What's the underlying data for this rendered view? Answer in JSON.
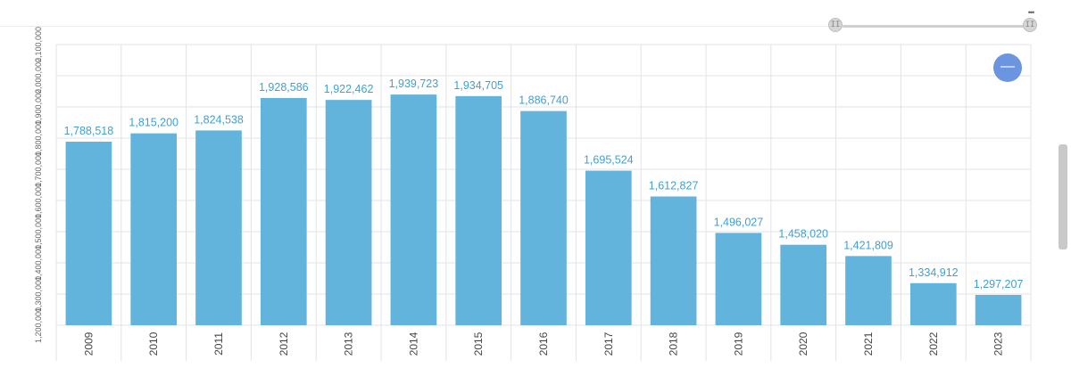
{
  "chart_data": {
    "type": "bar",
    "categories": [
      "2009",
      "2010",
      "2011",
      "2012",
      "2013",
      "2014",
      "2015",
      "2016",
      "2017",
      "2018",
      "2019",
      "2020",
      "2021",
      "2022",
      "2023"
    ],
    "values": [
      1788518,
      1815200,
      1824538,
      1928586,
      1922462,
      1939723,
      1934705,
      1886740,
      1695524,
      1612827,
      1496027,
      1458020,
      1421809,
      1334912,
      1297207
    ],
    "value_labels": [
      "1,788,518",
      "1,815,200",
      "1,824,538",
      "1,928,586",
      "1,922,462",
      "1,939,723",
      "1,934,705",
      "1,886,740",
      "1,695,524",
      "1,612,827",
      "1,496,027",
      "1,458,020",
      "1,421,809",
      "1,334,912",
      "1,297,207"
    ],
    "y_ticks": [
      1200000,
      1300000,
      1400000,
      1500000,
      1600000,
      1700000,
      1800000,
      1900000,
      2000000,
      2100000
    ],
    "y_tick_labels": [
      "1,200,000",
      "1,300,000",
      "1,400,000",
      "1,500,000",
      "1,600,000",
      "1,700,000",
      "1,800,000",
      "1,900,000",
      "2,000,000",
      "2,100,000"
    ],
    "ylim": [
      1200000,
      2100000
    ],
    "title": "",
    "xlabel": "",
    "ylabel": "",
    "grid": true,
    "colors": {
      "bar": "#63b4dc",
      "value_label": "#3fa0d6",
      "grid": "#e3e3e3"
    }
  },
  "controls": {
    "range_left_handle": "II",
    "range_right_handle": "II",
    "menu_glyph": "•••",
    "zoom_out_glyph": "—"
  }
}
